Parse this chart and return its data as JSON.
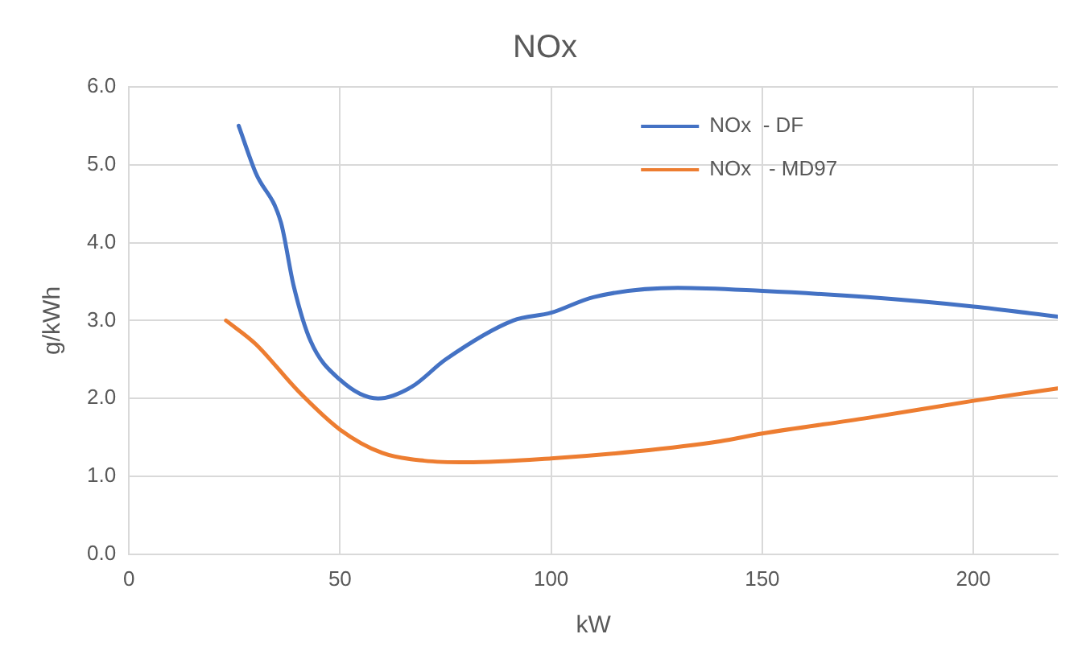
{
  "chart_data": {
    "type": "line",
    "title": "NOx",
    "xlabel": "kW",
    "ylabel": "g/kWh",
    "series": [
      {
        "name": "NOx  - DF",
        "color": "#4472c4",
        "x": [
          26,
          30,
          36,
          39,
          43,
          50,
          59,
          67,
          75,
          91,
          100,
          110,
          130,
          150,
          175,
          200,
          220
        ],
        "values": [
          5.5,
          4.9,
          4.26,
          3.45,
          2.74,
          2.24,
          2.0,
          2.15,
          2.5,
          3.0,
          3.1,
          3.3,
          3.42,
          3.38,
          3.3,
          3.18,
          3.05
        ]
      },
      {
        "name": "NOx   - MD97",
        "color": "#ed7d31",
        "x": [
          23,
          30,
          40,
          50,
          60,
          70,
          80,
          100,
          120,
          140,
          150,
          175,
          200,
          220
        ],
        "values": [
          3.0,
          2.7,
          2.1,
          1.6,
          1.3,
          1.2,
          1.18,
          1.23,
          1.32,
          1.45,
          1.55,
          1.75,
          1.97,
          2.13
        ]
      }
    ],
    "xlim": [
      0,
      220
    ],
    "xticks": [
      0,
      50,
      100,
      150,
      200
    ],
    "ylim": [
      0,
      6
    ],
    "yticks": [
      {
        "value": 0,
        "label": "0.0"
      },
      {
        "value": 1,
        "label": "1.0"
      },
      {
        "value": 2,
        "label": "2.0"
      },
      {
        "value": 3,
        "label": "3.0"
      },
      {
        "value": 4,
        "label": "4.0"
      },
      {
        "value": 5,
        "label": "5.0"
      },
      {
        "value": 6,
        "label": "6.0"
      }
    ],
    "grid": true,
    "legend": "top right",
    "marker": "none",
    "line_style": "solid"
  }
}
